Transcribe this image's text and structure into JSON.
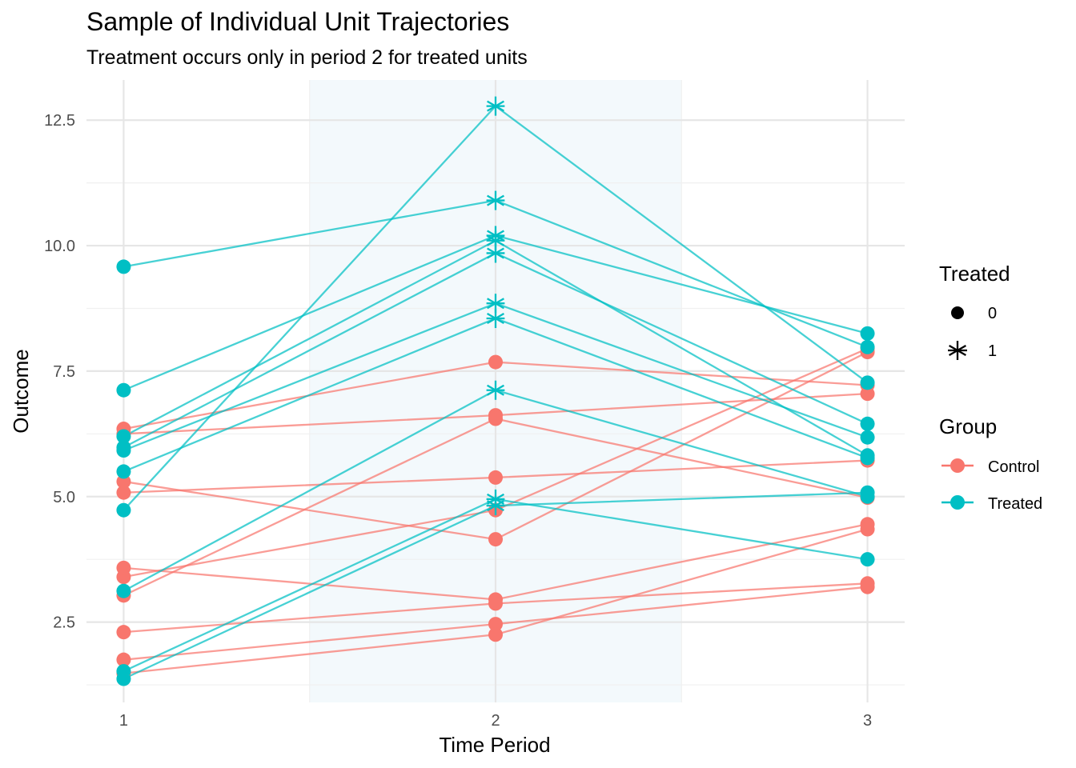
{
  "chart_data": {
    "type": "line",
    "title": "Sample of Individual Unit Trajectories",
    "subtitle": "Treatment occurs only in period 2 for treated units",
    "xlabel": "Time Period",
    "ylabel": "Outcome",
    "x": [
      1,
      2,
      3
    ],
    "x_ticks": [
      "1",
      "2",
      "3"
    ],
    "y_ticks": [
      "2.5",
      "5.0",
      "7.5",
      "10.0",
      "12.5"
    ],
    "xlim": [
      0.9,
      3.1
    ],
    "ylim": [
      0.9,
      13.3
    ],
    "shaded_period": [
      1.5,
      2.5
    ],
    "shade_color": "#f3f9fc",
    "grid": true,
    "colors": {
      "Control": "#f8766d",
      "Treated": "#00bfc4"
    },
    "legend_position": "right",
    "legend": {
      "treated": {
        "title": "Treated",
        "items": [
          "0",
          "1"
        ]
      },
      "group": {
        "title": "Group",
        "items": [
          "Control",
          "Treated"
        ]
      }
    },
    "series": [
      {
        "group": "Control",
        "values": [
          6.35,
          7.68,
          7.22
        ]
      },
      {
        "group": "Control",
        "values": [
          6.25,
          6.62,
          7.05
        ]
      },
      {
        "group": "Control",
        "values": [
          5.3,
          4.15,
          7.88
        ]
      },
      {
        "group": "Control",
        "values": [
          5.08,
          5.38,
          5.72
        ]
      },
      {
        "group": "Control",
        "values": [
          3.03,
          6.55,
          4.98
        ]
      },
      {
        "group": "Control",
        "values": [
          3.4,
          4.73,
          7.95
        ]
      },
      {
        "group": "Control",
        "values": [
          3.58,
          2.95,
          4.45
        ]
      },
      {
        "group": "Control",
        "values": [
          2.3,
          2.87,
          3.27
        ]
      },
      {
        "group": "Control",
        "values": [
          1.75,
          2.46,
          3.2
        ]
      },
      {
        "group": "Control",
        "values": [
          1.48,
          2.25,
          4.35
        ]
      },
      {
        "group": "Treated",
        "values": [
          9.58,
          10.9,
          7.98
        ]
      },
      {
        "group": "Treated",
        "values": [
          7.12,
          10.2,
          8.25
        ]
      },
      {
        "group": "Treated",
        "values": [
          6.2,
          10.1,
          5.82
        ]
      },
      {
        "group": "Treated",
        "values": [
          5.98,
          9.85,
          6.45
        ]
      },
      {
        "group": "Treated",
        "values": [
          5.92,
          8.85,
          6.18
        ]
      },
      {
        "group": "Treated",
        "values": [
          5.5,
          8.55,
          5.77
        ]
      },
      {
        "group": "Treated",
        "values": [
          4.73,
          12.78,
          7.27
        ]
      },
      {
        "group": "Treated",
        "values": [
          3.12,
          7.12,
          5.0
        ]
      },
      {
        "group": "Treated",
        "values": [
          1.52,
          4.95,
          3.75
        ]
      },
      {
        "group": "Treated",
        "values": [
          1.37,
          4.82,
          5.08
        ]
      }
    ]
  }
}
